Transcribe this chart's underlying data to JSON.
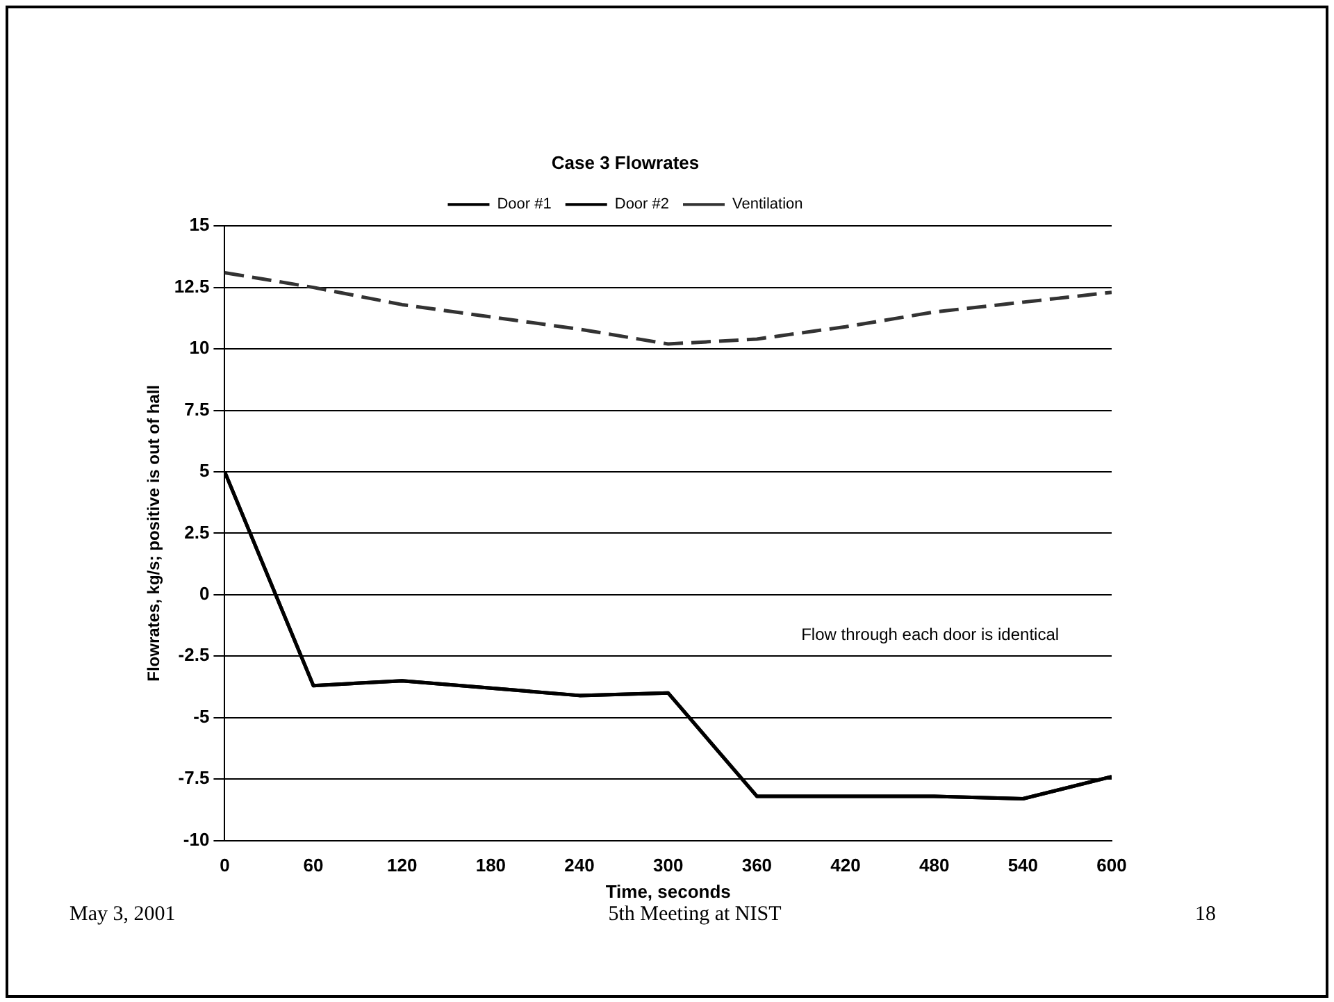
{
  "chart_data": {
    "type": "line",
    "title": "Case 3 Flowrates",
    "xlabel": "Time, seconds",
    "ylabel": "Flowrates, kg/s; positive is out of hall",
    "x": [
      0,
      60,
      120,
      180,
      240,
      300,
      360,
      420,
      480,
      540,
      600
    ],
    "series": [
      {
        "name": "Door #1",
        "color": "#000000",
        "line_style": "solid",
        "values": [
          5,
          -3.7,
          -3.5,
          -3.8,
          -4.1,
          -4.0,
          -8.2,
          -8.2,
          -8.2,
          -8.3,
          -7.4
        ]
      },
      {
        "name": "Door #2",
        "color": "#000000",
        "line_style": "solid",
        "values": [
          5,
          -3.7,
          -3.5,
          -3.8,
          -4.1,
          -4.0,
          -8.2,
          -8.2,
          -8.2,
          -8.3,
          -7.4
        ]
      },
      {
        "name": "Ventilation",
        "color": "#333333",
        "line_style": "dashed",
        "values": [
          13.1,
          12.5,
          11.8,
          11.3,
          10.8,
          10.2,
          10.4,
          10.9,
          11.5,
          11.9,
          12.3
        ]
      }
    ],
    "xlim": [
      0,
      600
    ],
    "xticks": [
      0,
      60,
      120,
      180,
      240,
      300,
      360,
      420,
      480,
      540,
      600
    ],
    "ylim": [
      -10,
      15
    ],
    "yticks": [
      -10,
      -7.5,
      -5,
      -2.5,
      0,
      2.5,
      5,
      7.5,
      10,
      12.5,
      15
    ],
    "grid": "y",
    "legend": "top",
    "marker": "none",
    "annotations": [
      "Flow through each door is identical",
      "May 3, 2001",
      "5th Meeting at NIST",
      "18"
    ]
  }
}
